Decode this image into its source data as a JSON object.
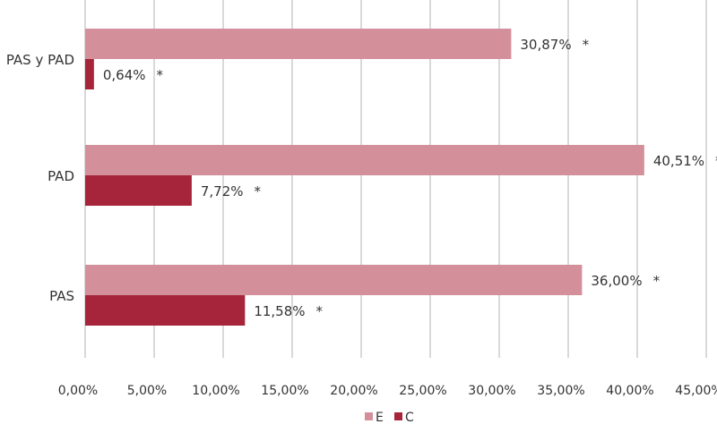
{
  "chart_data": {
    "type": "bar",
    "orientation": "horizontal",
    "categories": [
      "PAS y PAD",
      "PAD",
      "PAS"
    ],
    "series": [
      {
        "name": "E",
        "color": "#d4909a",
        "values": [
          30.87,
          40.51,
          36.0
        ],
        "labels": [
          "30,87%",
          "40,51%",
          "36,00%"
        ],
        "annotations": [
          "*",
          "*",
          "*"
        ]
      },
      {
        "name": "C",
        "color": "#a6253a",
        "values": [
          0.64,
          7.72,
          11.58
        ],
        "labels": [
          "0,64%",
          "7,72%",
          "11,58%"
        ],
        "annotations": [
          "*",
          "*",
          "*"
        ]
      }
    ],
    "xlim": [
      0,
      45
    ],
    "xticks": [
      0,
      5,
      10,
      15,
      20,
      25,
      30,
      35,
      40,
      45
    ],
    "xtick_labels": [
      "0,00%",
      "5,00%",
      "10,00%",
      "15,00%",
      "20,00%",
      "25,00%",
      "30,00%",
      "35,00%",
      "40,00%",
      "45,00%"
    ],
    "grid": "vertical",
    "legend": "bottom"
  }
}
